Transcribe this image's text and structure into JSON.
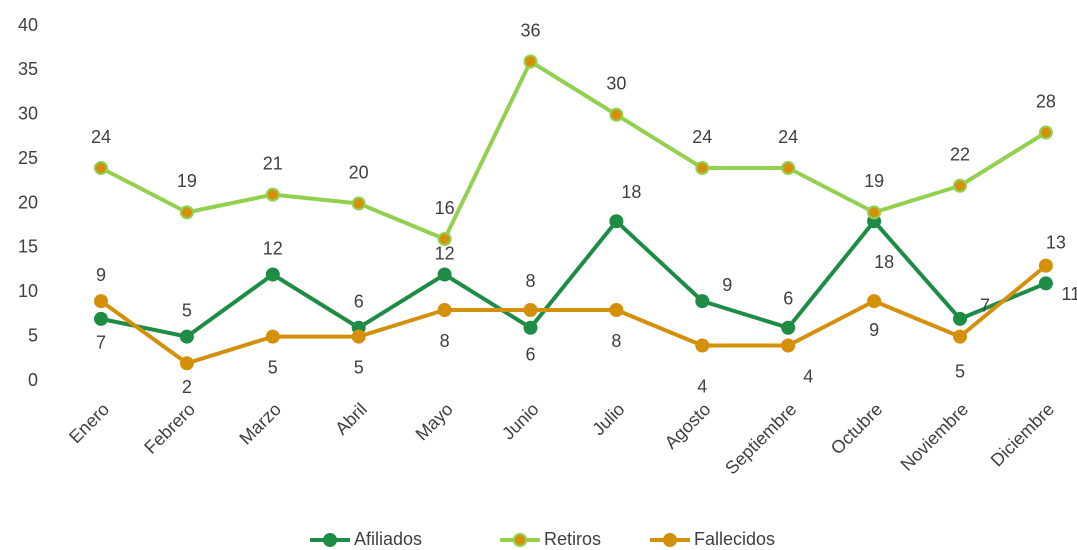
{
  "chart_data": {
    "type": "line",
    "categories": [
      "Enero",
      "Febrero",
      "Marzo",
      "Abril",
      "Mayo",
      "Junio",
      "Julio",
      "Agosto",
      "Septiembre",
      "Octubre",
      "Noviembre",
      "Diciembre"
    ],
    "series": [
      {
        "name": "Afiliados",
        "color": "#1e8c45",
        "values": [
          7,
          5,
          12,
          6,
          12,
          6,
          18,
          9,
          6,
          18,
          7,
          11
        ]
      },
      {
        "name": "Retiros",
        "color": "#92d050",
        "values": [
          24,
          19,
          21,
          20,
          16,
          36,
          30,
          24,
          24,
          19,
          22,
          28
        ]
      },
      {
        "name": "Fallecidos",
        "color": "#d4900a",
        "values": [
          9,
          2,
          5,
          5,
          8,
          8,
          8,
          4,
          4,
          9,
          5,
          13
        ]
      }
    ],
    "ylim": [
      0,
      40
    ],
    "yticks": [
      0,
      5,
      10,
      15,
      20,
      25,
      30,
      35,
      40
    ],
    "grid": false,
    "legend": "bottom"
  }
}
